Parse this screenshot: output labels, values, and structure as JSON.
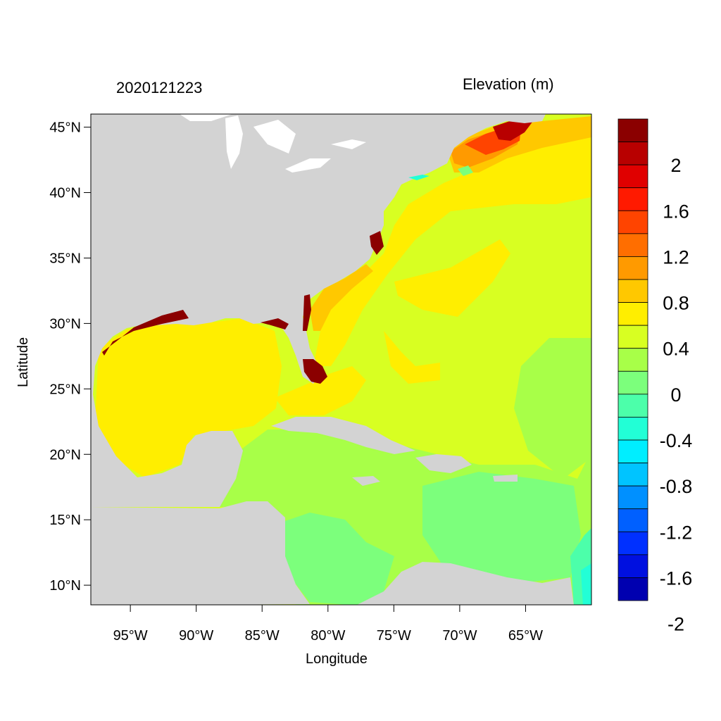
{
  "header": {
    "left_title": "2020121223",
    "right_title": "Elevation (m)"
  },
  "axes": {
    "xlabel": "Longitude",
    "ylabel": "Latitude",
    "x_ticks": [
      {
        "value": -95,
        "label": "95°W"
      },
      {
        "value": -90,
        "label": "90°W"
      },
      {
        "value": -85,
        "label": "85°W"
      },
      {
        "value": -80,
        "label": "80°W"
      },
      {
        "value": -75,
        "label": "75°W"
      },
      {
        "value": -70,
        "label": "70°W"
      },
      {
        "value": -65,
        "label": "65°W"
      }
    ],
    "y_ticks": [
      {
        "value": 45,
        "label": "45°N"
      },
      {
        "value": 40,
        "label": "40°N"
      },
      {
        "value": 35,
        "label": "35°N"
      },
      {
        "value": 30,
        "label": "30°N"
      },
      {
        "value": 25,
        "label": "25°N"
      },
      {
        "value": 20,
        "label": "20°N"
      },
      {
        "value": 15,
        "label": "15°N"
      },
      {
        "value": 10,
        "label": "10°N"
      }
    ],
    "lon_range": [
      -98,
      -60
    ],
    "lat_range": [
      8.5,
      46
    ]
  },
  "colorbar": {
    "colors": [
      "#8b0000",
      "#b80000",
      "#e00000",
      "#ff1a00",
      "#ff4400",
      "#ff6e00",
      "#ff9a00",
      "#ffc800",
      "#ffee00",
      "#d8ff22",
      "#a8ff48",
      "#7cff7c",
      "#4cffaa",
      "#22ffd6",
      "#00eeff",
      "#00c4ff",
      "#0090ff",
      "#0060ff",
      "#0030ff",
      "#0010e0",
      "#0000b0"
    ],
    "labels": [
      {
        "text": "2",
        "boundary": 2
      },
      {
        "text": "1.6",
        "boundary": 4
      },
      {
        "text": "1.2",
        "boundary": 6
      },
      {
        "text": "0.8",
        "boundary": 8
      },
      {
        "text": "0.4",
        "boundary": 10
      },
      {
        "text": "0",
        "boundary": 12
      },
      {
        "text": "-0.4",
        "boundary": 14
      },
      {
        "text": "-0.8",
        "boundary": 16
      },
      {
        "text": "-1.2",
        "boundary": 18
      },
      {
        "text": "-1.6",
        "boundary": 20
      },
      {
        "text": "-2",
        "boundary": 22
      }
    ]
  },
  "colors": {
    "land": "#d3d3d3",
    "ocean_base": "#d8ff22"
  }
}
